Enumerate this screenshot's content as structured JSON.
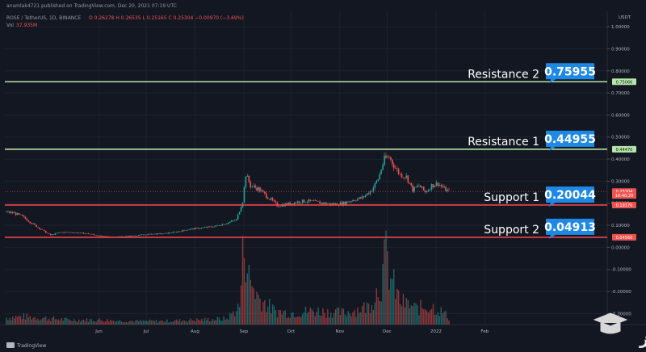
{
  "header": {
    "published": "anamlak4721 published on TradingView.com, Dec 20, 2021 07:19 UTC",
    "symbol": "ROSE / TetherUS, 1D, BINANCE",
    "ohlc": "O 0.26278  H 0.26535  L 0.25165  C 0.25304  −0.00970 (−3.69%)",
    "volume_label": "Vol",
    "volume_value": "37.935M"
  },
  "footer": {
    "brand": "TradingView"
  },
  "watermark": {
    "text": "ساعد نیوز"
  },
  "colors": {
    "background": "#131722",
    "up": "#26a69a",
    "down": "#ef5350",
    "resistance_line": "#b5e6a7",
    "support_line": "#f0444b",
    "callout": "#1e88e5",
    "grid": "#1e222d"
  },
  "chart_data": {
    "type": "candlestick",
    "currency": "USDT",
    "x_ticks": [
      "Jun",
      "Jul",
      "Aug",
      "Sep",
      "Oct",
      "Nov",
      "Dec",
      "2022",
      "Feb"
    ],
    "price_axis": [
      "1.00000",
      "0.90000",
      "0.80000",
      "0.70000",
      "0.60000",
      "0.50000",
      "0.40000",
      "0.30000",
      "0.20000",
      "0.10000",
      "0.00000",
      "-0.10000",
      "-0.20000",
      "-0.30000"
    ],
    "ylim": [
      -0.35,
      1.07
    ],
    "grid": true,
    "price_tags": [
      {
        "label": "0.75066",
        "value": 0.75066,
        "kind": "resistance"
      },
      {
        "label": "0.44470",
        "value": 0.4447,
        "kind": "resistance"
      },
      {
        "label": "0.25304",
        "value": 0.25304,
        "kind": "last"
      },
      {
        "label": "16:40:29",
        "value": 0.235,
        "kind": "last"
      },
      {
        "label": "0.19176",
        "value": 0.19176,
        "kind": "support"
      },
      {
        "label": "0.04560",
        "value": 0.0456,
        "kind": "support"
      }
    ],
    "levels": [
      {
        "name": "Resistance 2",
        "line": 0.75066,
        "callout": "0.75955",
        "kind": "resistance"
      },
      {
        "name": "Resistance 1",
        "line": 0.4447,
        "callout": "0.44955",
        "kind": "resistance"
      },
      {
        "name": "Support 1",
        "line": 0.19176,
        "callout": "0.20044",
        "kind": "support"
      },
      {
        "name": "Support 2",
        "line": 0.0456,
        "callout": "0.04913",
        "kind": "support"
      }
    ],
    "price_anchors": [
      [
        0,
        0.16
      ],
      [
        5,
        0.155
      ],
      [
        10,
        0.14
      ],
      [
        18,
        0.1
      ],
      [
        24,
        0.072
      ],
      [
        28,
        0.055
      ],
      [
        34,
        0.068
      ],
      [
        42,
        0.068
      ],
      [
        52,
        0.062
      ],
      [
        60,
        0.05
      ],
      [
        68,
        0.047
      ],
      [
        76,
        0.05
      ],
      [
        84,
        0.055
      ],
      [
        92,
        0.06
      ],
      [
        100,
        0.062
      ],
      [
        108,
        0.07
      ],
      [
        116,
        0.082
      ],
      [
        124,
        0.088
      ],
      [
        132,
        0.095
      ],
      [
        140,
        0.11
      ],
      [
        146,
        0.125
      ],
      [
        150,
        0.21
      ],
      [
        152,
        0.33
      ],
      [
        155,
        0.28
      ],
      [
        160,
        0.265
      ],
      [
        164,
        0.24
      ],
      [
        168,
        0.215
      ],
      [
        172,
        0.19
      ],
      [
        178,
        0.195
      ],
      [
        184,
        0.205
      ],
      [
        190,
        0.21
      ],
      [
        196,
        0.205
      ],
      [
        202,
        0.2
      ],
      [
        208,
        0.195
      ],
      [
        214,
        0.2
      ],
      [
        220,
        0.215
      ],
      [
        226,
        0.225
      ],
      [
        232,
        0.26
      ],
      [
        236,
        0.31
      ],
      [
        240,
        0.4
      ],
      [
        243,
        0.41
      ],
      [
        246,
        0.37
      ],
      [
        250,
        0.33
      ],
      [
        254,
        0.32
      ],
      [
        258,
        0.26
      ],
      [
        262,
        0.28
      ],
      [
        266,
        0.25
      ],
      [
        270,
        0.28
      ],
      [
        274,
        0.29
      ],
      [
        278,
        0.265
      ],
      [
        281,
        0.253
      ]
    ],
    "volume_anchors": [
      [
        0,
        0.03
      ],
      [
        10,
        0.035
      ],
      [
        20,
        0.03
      ],
      [
        40,
        0.02
      ],
      [
        60,
        0.02
      ],
      [
        80,
        0.015
      ],
      [
        100,
        0.015
      ],
      [
        120,
        0.02
      ],
      [
        140,
        0.025
      ],
      [
        148,
        0.08
      ],
      [
        151,
        0.38
      ],
      [
        154,
        0.2
      ],
      [
        160,
        0.12
      ],
      [
        170,
        0.06
      ],
      [
        180,
        0.05
      ],
      [
        195,
        0.06
      ],
      [
        215,
        0.05
      ],
      [
        230,
        0.08
      ],
      [
        238,
        0.18
      ],
      [
        241,
        0.3
      ],
      [
        244,
        0.2
      ],
      [
        250,
        0.1
      ],
      [
        260,
        0.07
      ],
      [
        270,
        0.08
      ],
      [
        278,
        0.05
      ],
      [
        281,
        0.03
      ]
    ],
    "candle_count": 282
  }
}
